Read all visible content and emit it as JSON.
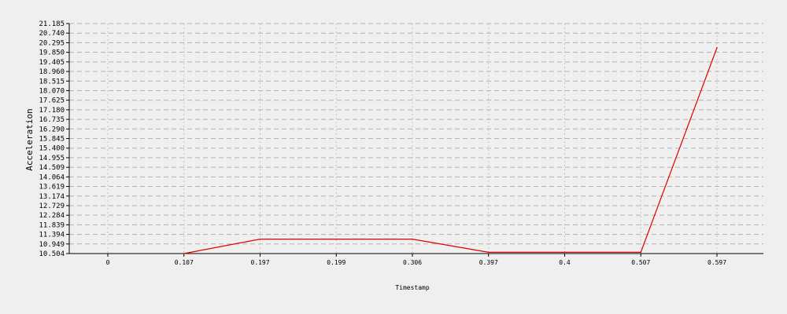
{
  "chart_data": {
    "type": "line",
    "title": "",
    "xlabel": "Timestamp",
    "ylabel": "Acceleration",
    "categories": [
      "0",
      "0.107",
      "0.197",
      "0.199",
      "0.306",
      "0.397",
      "0.4",
      "0.507",
      "0.597"
    ],
    "series": [
      {
        "values": [
          null,
          10.504,
          11.174,
          11.174,
          11.174,
          10.564,
          10.564,
          10.564,
          20.06
        ],
        "color": "#dd0000"
      }
    ],
    "yticks": [
      "10.504",
      "10.949",
      "11.394",
      "11.839",
      "12.284",
      "12.729",
      "13.174",
      "13.619",
      "14.064",
      "14.509",
      "14.955",
      "15.400",
      "15.845",
      "16.290",
      "16.735",
      "17.180",
      "17.625",
      "18.070",
      "18.515",
      "18.960",
      "19.405",
      "19.850",
      "20.295",
      "20.740",
      "21.185"
    ],
    "ylim": [
      10.504,
      21.185
    ],
    "grid": true,
    "legend": "none"
  }
}
